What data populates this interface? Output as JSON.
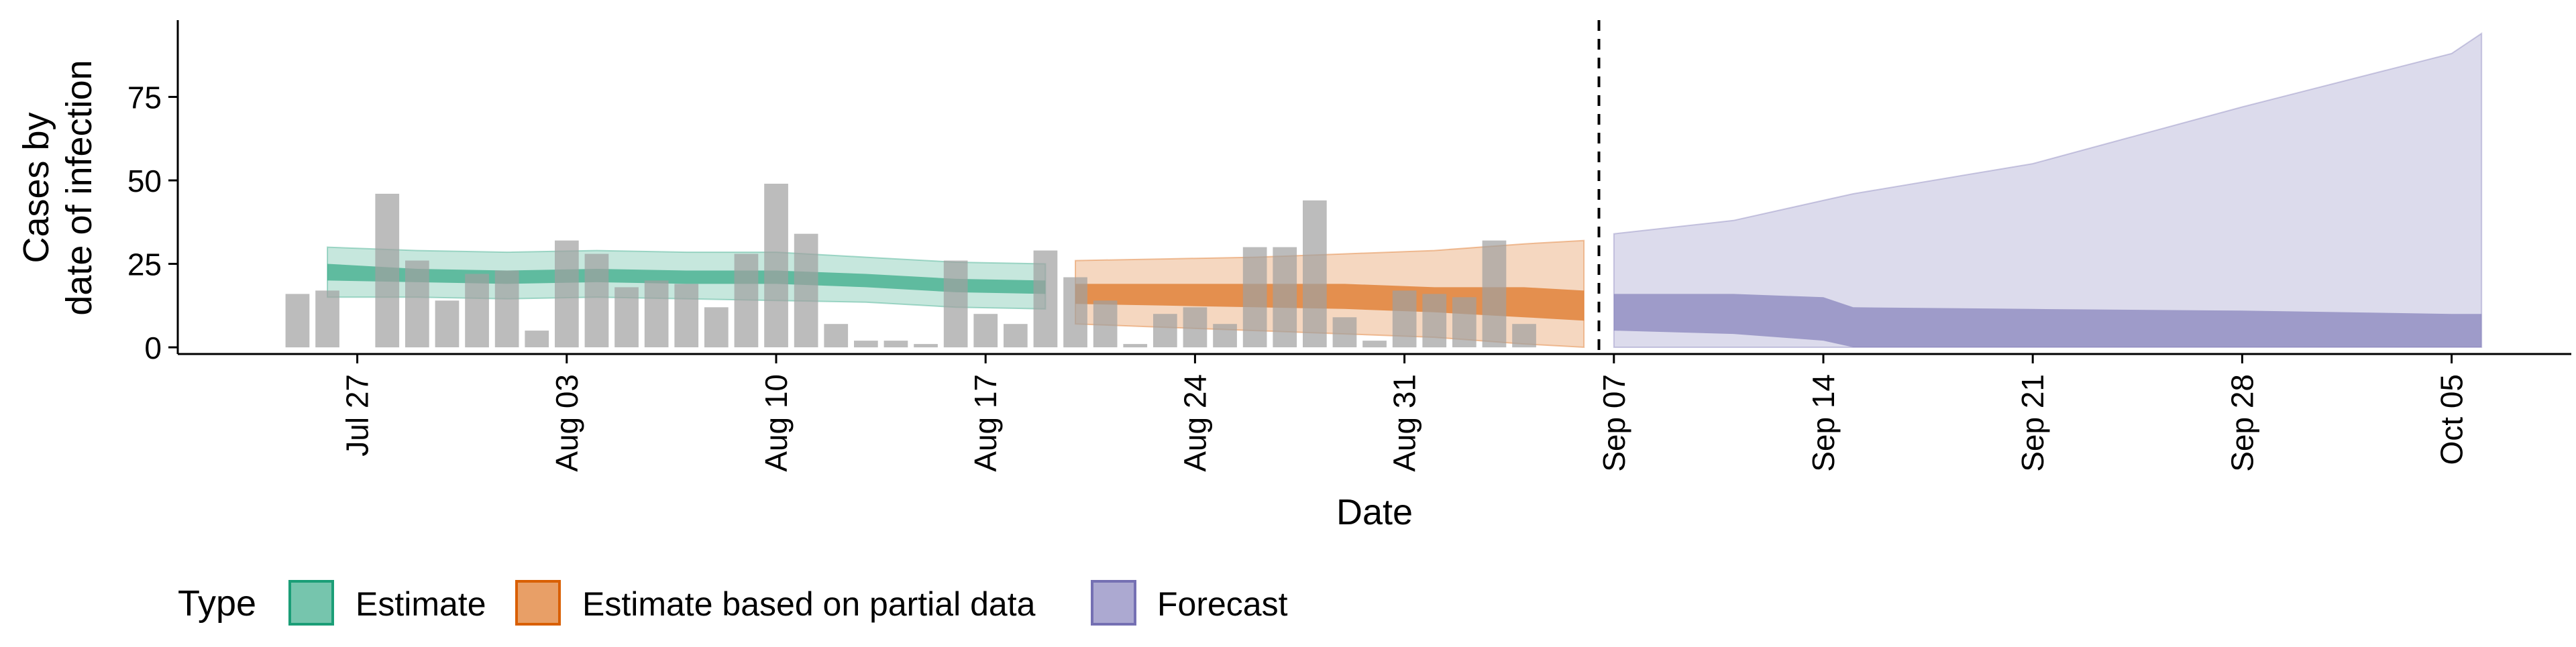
{
  "chart_data": {
    "type": "bar",
    "xlabel": "Date",
    "ylabel": [
      "Cases by",
      "date of infection"
    ],
    "ylim": [
      -2,
      98
    ],
    "xlim": [
      "2020-07-21",
      "2020-10-09"
    ],
    "y_ticks": [
      0,
      25,
      50,
      75
    ],
    "x_ticks": [
      {
        "date": "2020-07-27",
        "label": "Jul 27"
      },
      {
        "date": "2020-08-03",
        "label": "Aug 03"
      },
      {
        "date": "2020-08-10",
        "label": "Aug 10"
      },
      {
        "date": "2020-08-17",
        "label": "Aug 17"
      },
      {
        "date": "2020-08-24",
        "label": "Aug 24"
      },
      {
        "date": "2020-08-31",
        "label": "Aug 31"
      },
      {
        "date": "2020-09-07",
        "label": "Sep 07"
      },
      {
        "date": "2020-09-14",
        "label": "Sep 14"
      },
      {
        "date": "2020-09-21",
        "label": "Sep 21"
      },
      {
        "date": "2020-09-28",
        "label": "Sep 28"
      },
      {
        "date": "2020-10-05",
        "label": "Oct 05"
      }
    ],
    "grid": false,
    "legend_position": "bottom",
    "legend": {
      "title": "Type",
      "items": [
        {
          "label": "Estimate",
          "color": "#1b9e77"
        },
        {
          "label": "Estimate based on partial data",
          "color": "#d95f02"
        },
        {
          "label": "Forecast",
          "color": "#7570b3"
        }
      ]
    },
    "forecast_start": "2020-09-06",
    "observed_cases": {
      "color": "#a0a0a0",
      "x": [
        "2020-07-25",
        "2020-07-26",
        "2020-07-28",
        "2020-07-29",
        "2020-07-30",
        "2020-07-31",
        "2020-08-01",
        "2020-08-02",
        "2020-08-03",
        "2020-08-04",
        "2020-08-05",
        "2020-08-06",
        "2020-08-07",
        "2020-08-08",
        "2020-08-09",
        "2020-08-10",
        "2020-08-11",
        "2020-08-12",
        "2020-08-13",
        "2020-08-14",
        "2020-08-15",
        "2020-08-16",
        "2020-08-17",
        "2020-08-18",
        "2020-08-19",
        "2020-08-20",
        "2020-08-21",
        "2020-08-22",
        "2020-08-23",
        "2020-08-24",
        "2020-08-25",
        "2020-08-26",
        "2020-08-27",
        "2020-08-28",
        "2020-08-29",
        "2020-08-30",
        "2020-08-31",
        "2020-09-01",
        "2020-09-02",
        "2020-09-03",
        "2020-09-04",
        "2020-09-05"
      ],
      "values": [
        16,
        17,
        46,
        26,
        14,
        22,
        23,
        5,
        32,
        28,
        18,
        20,
        19,
        12,
        28,
        49,
        34,
        7,
        2,
        2,
        1,
        26,
        10,
        7,
        29,
        21,
        14,
        1,
        10,
        12,
        7,
        30,
        30,
        44,
        9,
        2,
        17,
        16,
        15,
        32,
        7,
        0
      ]
    },
    "series": [
      {
        "name": "Estimate",
        "color": "#1b9e77",
        "x": [
          "2020-07-26",
          "2020-07-29",
          "2020-08-01",
          "2020-08-04",
          "2020-08-07",
          "2020-08-10",
          "2020-08-13",
          "2020-08-16",
          "2020-08-19"
        ],
        "median_lower": [
          20,
          19.5,
          19,
          19.5,
          19,
          19,
          18,
          16.5,
          16
        ],
        "median_upper": [
          25,
          23.5,
          23,
          23.5,
          23,
          23,
          22,
          20.5,
          20
        ],
        "ci_lower": [
          15,
          15,
          14.5,
          15,
          14.5,
          14,
          13.5,
          12,
          11.5
        ],
        "ci_upper": [
          30,
          29,
          28.5,
          29,
          28.5,
          28.5,
          27,
          25.5,
          25
        ]
      },
      {
        "name": "Estimate based on partial data",
        "color": "#d95f02",
        "x": [
          "2020-08-20",
          "2020-08-23",
          "2020-08-26",
          "2020-08-29",
          "2020-09-01",
          "2020-09-04",
          "2020-09-06"
        ],
        "median_lower": [
          13,
          12.5,
          12,
          11.5,
          10.5,
          9,
          8
        ],
        "median_upper": [
          19,
          19,
          19,
          19,
          18,
          18,
          17
        ],
        "ci_lower": [
          7,
          6,
          5,
          4,
          3,
          1,
          0
        ],
        "ci_upper": [
          26,
          26.5,
          27,
          28,
          29,
          31,
          32
        ]
      },
      {
        "name": "Forecast",
        "color": "#7570b3",
        "x": [
          "2020-09-07",
          "2020-09-11",
          "2020-09-14",
          "2020-09-15",
          "2020-09-21",
          "2020-09-28",
          "2020-10-05",
          "2020-10-06"
        ],
        "median_lower": [
          5,
          4,
          2,
          0,
          0,
          0,
          0,
          0
        ],
        "median_upper": [
          16,
          16,
          15,
          12,
          11.5,
          11,
          10,
          10
        ],
        "ci_lower": [
          0,
          0,
          0,
          0,
          0,
          0,
          0,
          0
        ],
        "ci_upper": [
          34,
          38,
          44,
          46,
          55,
          72,
          88,
          94
        ]
      }
    ]
  }
}
